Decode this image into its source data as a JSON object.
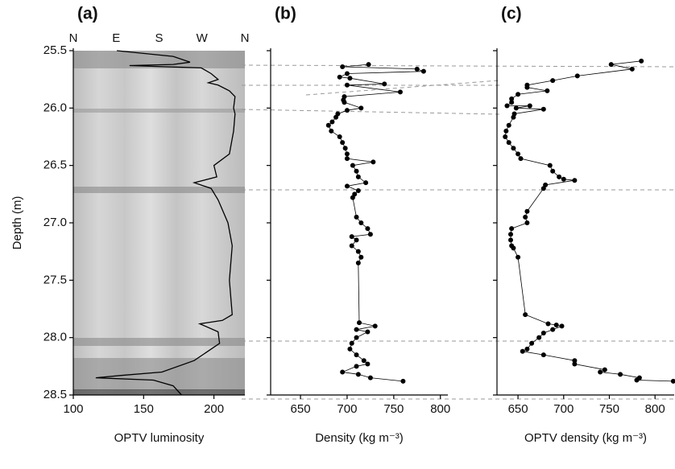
{
  "chart_data": [
    {
      "type": "line",
      "title": "(a)",
      "xlabel": "OPTV luminosity",
      "ylabel": "Depth (m)",
      "top_labels": [
        "N",
        "E",
        "S",
        "W",
        "N"
      ],
      "xlim": [
        100,
        222
      ],
      "xticks": [
        100,
        150,
        200
      ],
      "ylim": [
        25.5,
        28.5
      ],
      "y_inverted": true,
      "yticks": [
        25.5,
        {
          "value": 26,
          "label": "26.0"
        },
        26.5,
        {
          "value": 27,
          "label": "27.0"
        },
        27.5,
        {
          "value": 28,
          "label": "28.0"
        },
        28.5
      ],
      "color": "#000000",
      "x": [
        131,
        171,
        183,
        171,
        140,
        191,
        198,
        203,
        196,
        203,
        211,
        215,
        214,
        215,
        214,
        211,
        200,
        202,
        186,
        198,
        203,
        210,
        213,
        211,
        213,
        206,
        190,
        203,
        204,
        198,
        186,
        163,
        134,
        116,
        157,
        171,
        177
      ],
      "y": [
        25.5,
        25.55,
        25.6,
        25.62,
        25.63,
        25.65,
        25.7,
        25.75,
        25.78,
        25.8,
        25.85,
        25.9,
        26.0,
        26.05,
        26.2,
        26.4,
        26.5,
        26.6,
        26.65,
        26.7,
        26.8,
        27.0,
        27.2,
        27.5,
        27.8,
        27.85,
        27.88,
        27.95,
        28.05,
        28.1,
        28.2,
        28.3,
        28.33,
        28.35,
        28.37,
        28.42,
        28.5
      ]
    },
    {
      "type": "scatter-line",
      "title": "(b)",
      "xlabel": "Density (kg m⁻³)",
      "xlim": [
        618,
        808
      ],
      "xticks": [
        650,
        700,
        750,
        800
      ],
      "ylim": [
        25.5,
        28.5
      ],
      "y_inverted": true,
      "yticks": [
        25.5,
        26,
        26.5,
        27,
        27.5,
        28,
        28.5
      ],
      "color": "#000000",
      "x": [
        723,
        695,
        775,
        782,
        700,
        692,
        703,
        740,
        700,
        757,
        697,
        696,
        697,
        715,
        700,
        690,
        688,
        684,
        680,
        683,
        692,
        695,
        698,
        700,
        700,
        728,
        706,
        710,
        712,
        720,
        700,
        712,
        708,
        706,
        710,
        715,
        722,
        725,
        705,
        710,
        705,
        712,
        715,
        712,
        713,
        730,
        710,
        722,
        710,
        705,
        703,
        710,
        718,
        722,
        710,
        695,
        712,
        725,
        760
      ],
      "y": [
        25.62,
        25.64,
        25.66,
        25.68,
        25.7,
        25.73,
        25.74,
        25.79,
        25.8,
        25.86,
        25.9,
        25.93,
        25.95,
        26.0,
        26.02,
        26.05,
        26.08,
        26.12,
        26.15,
        26.2,
        26.25,
        26.3,
        26.35,
        26.4,
        26.44,
        26.47,
        26.5,
        26.55,
        26.6,
        26.65,
        26.68,
        26.72,
        26.75,
        26.78,
        26.95,
        27.0,
        27.05,
        27.1,
        27.12,
        27.15,
        27.2,
        27.25,
        27.3,
        27.35,
        27.87,
        27.9,
        27.93,
        27.95,
        28.0,
        28.05,
        28.1,
        28.15,
        28.2,
        28.23,
        28.25,
        28.3,
        28.32,
        28.35,
        28.38
      ]
    },
    {
      "type": "scatter-line",
      "title": "(c)",
      "xlabel": "OPTV density (kg m⁻³)",
      "xlim": [
        627,
        821
      ],
      "xticks": [
        650,
        700,
        750,
        800
      ],
      "ylim": [
        25.5,
        28.5
      ],
      "y_inverted": true,
      "yticks": [
        25.5,
        26,
        26.5,
        27,
        27.5,
        28,
        28.5
      ],
      "color": "#000000",
      "x": [
        785,
        752,
        775,
        715,
        688,
        660,
        660,
        682,
        650,
        643,
        643,
        638,
        663,
        648,
        678,
        646,
        645,
        640,
        637,
        636,
        640,
        645,
        650,
        653,
        685,
        688,
        695,
        700,
        712,
        680,
        678,
        660,
        658,
        660,
        643,
        642,
        642,
        643,
        645,
        650,
        658,
        683,
        692,
        698,
        688,
        678,
        673,
        665,
        660,
        655,
        678,
        712,
        712,
        745,
        740,
        762,
        783,
        780,
        820
      ],
      "y": [
        25.59,
        25.62,
        25.66,
        25.72,
        25.76,
        25.8,
        25.82,
        25.85,
        25.88,
        25.92,
        25.95,
        25.98,
        25.98,
        26.0,
        26.01,
        26.05,
        26.08,
        26.15,
        26.2,
        26.25,
        26.3,
        26.35,
        26.4,
        26.44,
        26.5,
        26.55,
        26.6,
        26.62,
        26.63,
        26.67,
        26.7,
        26.9,
        26.95,
        27.0,
        27.05,
        27.1,
        27.15,
        27.2,
        27.22,
        27.3,
        27.8,
        27.88,
        27.89,
        27.9,
        27.93,
        27.96,
        28.0,
        28.05,
        28.1,
        28.12,
        28.15,
        28.2,
        28.23,
        28.28,
        28.3,
        28.32,
        28.35,
        28.37,
        28.38
      ]
    }
  ]
}
